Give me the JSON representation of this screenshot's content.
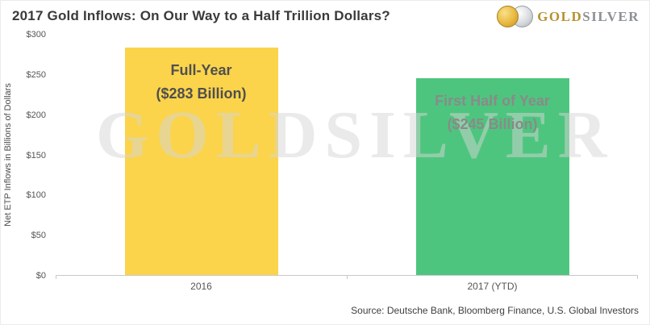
{
  "header": {
    "title": "2017 Gold Inflows: On Our Way to a Half Trillion Dollars?",
    "logo": {
      "gold": "GOLD",
      "silver": "SILVER"
    }
  },
  "watermark": "GOLDSILVER",
  "footer": {
    "source": "Source: Deutsche Bank, Bloomberg Finance, U.S. Global Investors"
  },
  "chart_data": {
    "type": "bar",
    "title": "2017 Gold Inflows: On Our Way to a Half Trillion Dollars?",
    "ylabel": "Net ETP Inflows in Billions of Dollars",
    "xlabel": "",
    "categories": [
      "2016",
      "2017 (YTD)"
    ],
    "values": [
      283,
      245
    ],
    "bar_colors": [
      "#FBD44B",
      "#4EC57E"
    ],
    "bar_labels": [
      {
        "line1": "Full-Year",
        "line2": "($283 Billion)",
        "color": "#4f4f4f"
      },
      {
        "line1": "First Half of Year",
        "line2": "($245 Billion)",
        "color": "#8a8a8a"
      }
    ],
    "ylim": [
      0,
      300
    ],
    "yticks": [
      {
        "value": 0,
        "label": "$0"
      },
      {
        "value": 50,
        "label": "$50"
      },
      {
        "value": 100,
        "label": "$100"
      },
      {
        "value": 150,
        "label": "$150"
      },
      {
        "value": 200,
        "label": "$200"
      },
      {
        "value": 250,
        "label": "$250"
      },
      {
        "value": 300,
        "label": "$300"
      }
    ],
    "grid": false,
    "legend": "none"
  }
}
